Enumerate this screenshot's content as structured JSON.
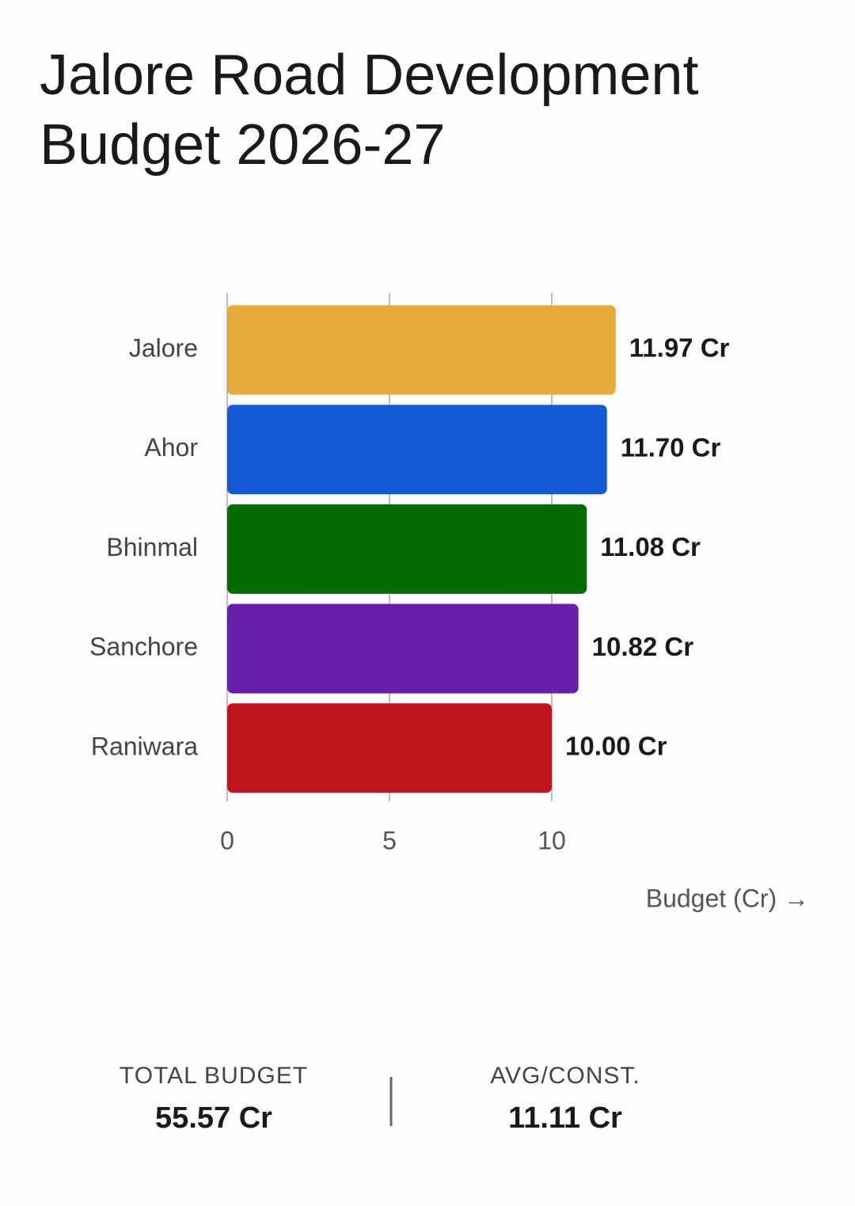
{
  "chart_data": {
    "type": "hbar",
    "title": "Jalore Road Development Budget 2026-27",
    "categories": [
      "Jalore",
      "Ahor",
      "Bhinmal",
      "Sanchore",
      "Raniwara"
    ],
    "values": [
      11.97,
      11.7,
      11.08,
      10.82,
      10.0
    ],
    "value_labels": [
      "11.97 Cr",
      "11.70 Cr",
      "11.08 Cr",
      "10.82 Cr",
      "10.00 Cr"
    ],
    "colors": [
      "#e8aa3a",
      "#155bd6",
      "#056b05",
      "#671eaa",
      "#c0141e"
    ],
    "xlim": [
      0,
      15
    ],
    "xticks": [
      0,
      5,
      10
    ],
    "grid": true,
    "x_label": "Budget (Cr) →"
  },
  "summary": [
    {
      "label": "TOTAL BUDGET",
      "value": "55.57 Cr"
    },
    {
      "label": "AVG/CONST.",
      "value": "11.11 Cr"
    }
  ]
}
